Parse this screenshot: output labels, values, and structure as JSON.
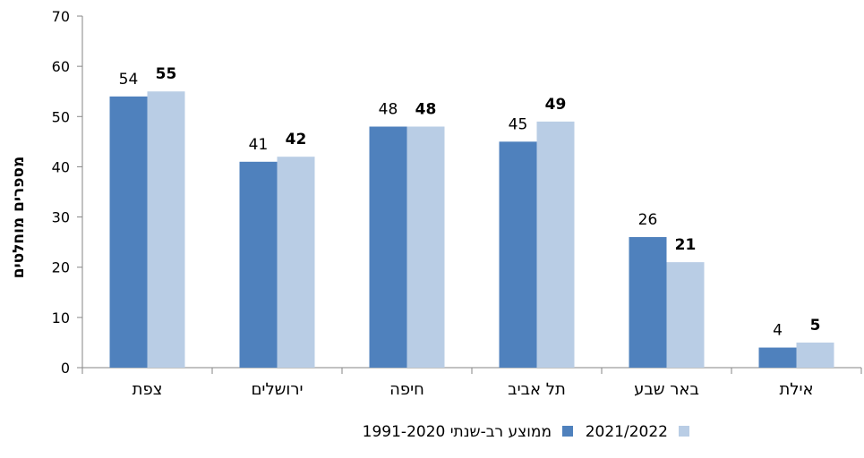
{
  "chart_data": {
    "type": "bar",
    "direction": "rtl",
    "categories": [
      "צפת",
      "ירושלים",
      "חיפה",
      "תל אביב",
      "באר שבע",
      "אילת"
    ],
    "series": [
      {
        "name": "ממוצע רב-שנתי 1991-2020",
        "color": "#4f81bd",
        "values": [
          54,
          41,
          48,
          45,
          26,
          4
        ]
      },
      {
        "name": "2021/2022",
        "color": "#b9cde5",
        "values": [
          55,
          42,
          48,
          49,
          21,
          5
        ]
      }
    ],
    "title": "",
    "xlabel": "",
    "ylabel": "מספרים מוחלטים",
    "ylim": [
      0,
      70
    ],
    "yticks": [
      0,
      10,
      20,
      30,
      40,
      50,
      60,
      70
    ],
    "grid": false,
    "legend_position": "bottom"
  }
}
